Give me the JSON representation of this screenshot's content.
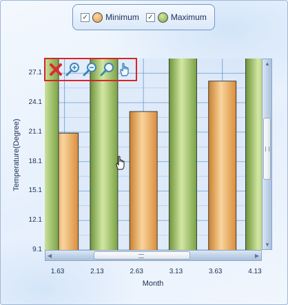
{
  "legend": {
    "items": [
      {
        "label": "Minimum",
        "checked": true,
        "check_glyph": "✓",
        "color": "#e8a453"
      },
      {
        "label": "Maximum",
        "checked": true,
        "check_glyph": "✓",
        "color": "#8fb659"
      }
    ]
  },
  "toolbar": {
    "tools": [
      "close-icon",
      "zoom-in-icon",
      "zoom-out-icon",
      "zoom-reset-icon",
      "pan-hand-icon"
    ],
    "border_color": "#d8232a"
  },
  "chart_data": {
    "type": "bar",
    "title": "",
    "xlabel": "Month",
    "ylabel": "Temperature(Degree)",
    "x_tick_labels": [
      "1.63",
      "2.13",
      "2.63",
      "3.13",
      "3.63",
      "4.13"
    ],
    "y_tick_labels": [
      "9.1",
      "12.1",
      "15.1",
      "18.1",
      "21.1",
      "24.1",
      "27.1"
    ],
    "xlim": [
      1.38,
      4.13
    ],
    "ylim": [
      9.1,
      28.6
    ],
    "grid": true,
    "legend_position": "top",
    "series": [
      {
        "name": "Minimum",
        "color": "#e8a453",
        "points": [
          {
            "x": 1.63,
            "y": 21.0
          },
          {
            "x": 2.63,
            "y": 23.2
          },
          {
            "x": 3.63,
            "y": 26.3
          }
        ]
      },
      {
        "name": "Maximum",
        "color": "#8fb659",
        "points": [
          {
            "x": 1.38,
            "y": 30.0
          },
          {
            "x": 2.13,
            "y": 30.0
          },
          {
            "x": 3.13,
            "y": 30.0
          },
          {
            "x": 4.1,
            "y": 30.0
          }
        ]
      }
    ]
  }
}
